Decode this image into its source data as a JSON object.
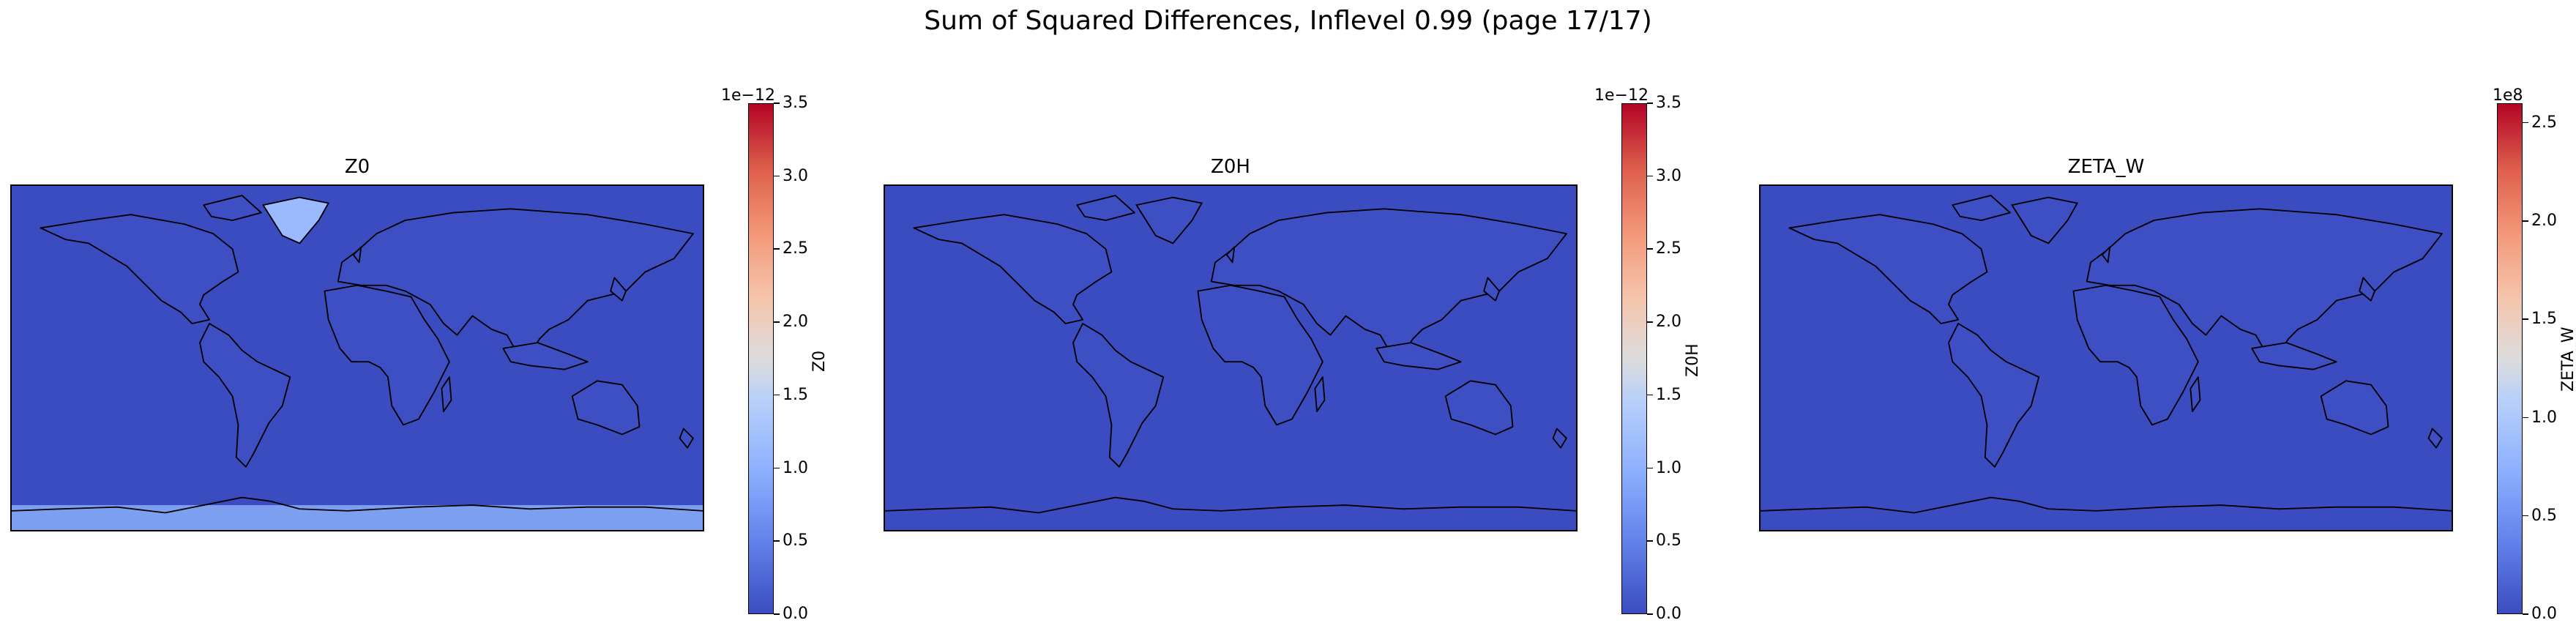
{
  "figure": {
    "suptitle": "Sum of Squared Differences, Inflevel 0.99 (page 17/17)"
  },
  "panels": [
    {
      "title": "Z0",
      "colorbar": {
        "label": "Z0",
        "offset_text": "1e−12",
        "ticks": [
          "0.0",
          "0.5",
          "1.0",
          "1.5",
          "2.0",
          "2.5",
          "3.0",
          "3.5"
        ],
        "vmin": 0.0,
        "vmax": 3.5
      },
      "field": {
        "background_value": 0.0,
        "greenland_value": 1.2,
        "antarctica_value": 0.85
      }
    },
    {
      "title": "Z0H",
      "colorbar": {
        "label": "Z0H",
        "offset_text": "1e−12",
        "ticks": [
          "0.0",
          "0.5",
          "1.0",
          "1.5",
          "2.0",
          "2.5",
          "3.0",
          "3.5"
        ],
        "vmin": 0.0,
        "vmax": 3.5
      },
      "field": {
        "background_value": 0.0
      }
    },
    {
      "title": "ZETA_W",
      "colorbar": {
        "label": "ZETA_W",
        "offset_text": "1e8",
        "ticks": [
          "0.0",
          "0.5",
          "1.0",
          "1.5",
          "2.0",
          "2.5"
        ],
        "vmin": 0.0,
        "vmax": 2.6
      },
      "field": {
        "background_value": 0.0
      }
    }
  ],
  "colors": {
    "low": "#3b4cc0",
    "high": "#b40426",
    "greenland": "#9bb9ff",
    "antarctica": "#7d9ff0"
  },
  "colormap": "coolwarm"
}
